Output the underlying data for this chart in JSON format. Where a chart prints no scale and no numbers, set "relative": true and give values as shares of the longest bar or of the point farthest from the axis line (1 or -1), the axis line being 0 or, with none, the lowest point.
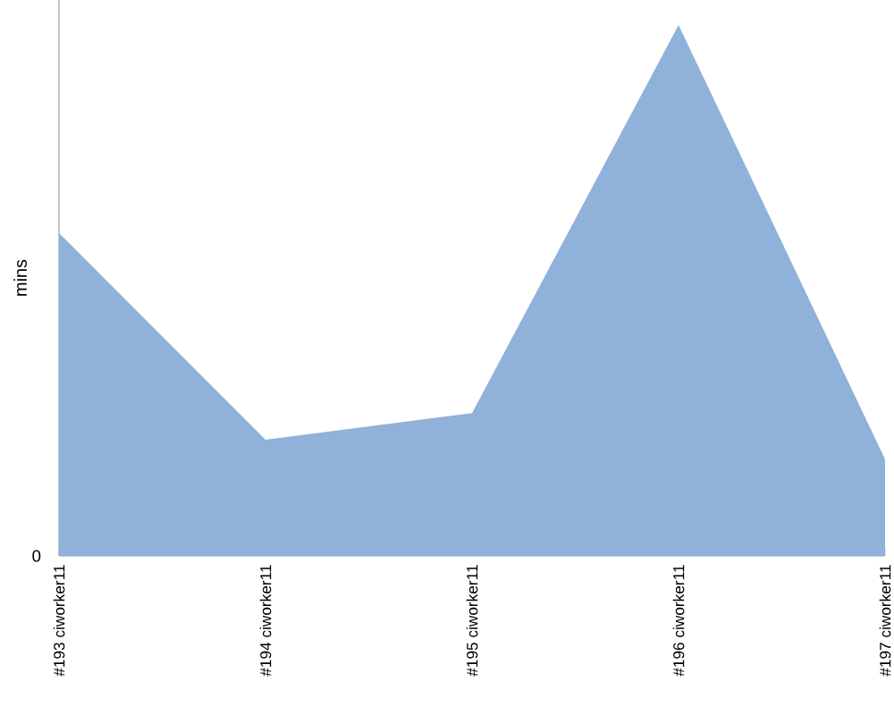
{
  "chart_data": {
    "type": "area",
    "ylabel": "mins",
    "categories": [
      "#193 ciworker11",
      "#194 ciworker11",
      "#195 ciworker11",
      "#196 ciworker11",
      "#197 ciworker11"
    ],
    "values": [
      0.608,
      0.219,
      0.269,
      1,
      0.182
    ],
    "color": "#8fb1da",
    "relative": true,
    "annotations": [
      "0"
    ]
  }
}
